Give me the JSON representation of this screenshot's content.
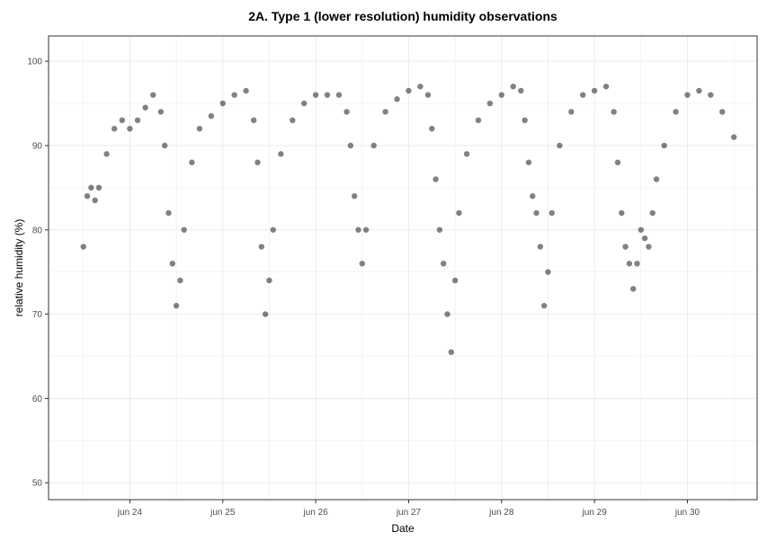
{
  "chart_data": {
    "type": "scatter",
    "title": "2A. Type 1 (lower resolution) humidity observations",
    "xlabel": "Date",
    "ylabel": "relative humidity (%)",
    "x_ticks": [
      "jun 24",
      "jun 25",
      "jun 26",
      "jun 27",
      "jun 28",
      "jun 29",
      "jun 30"
    ],
    "y_ticks": [
      50,
      60,
      70,
      80,
      90,
      100
    ],
    "xlim": [
      "2023-06-23T03:00",
      "2023-06-30T18:00"
    ],
    "ylim": [
      48,
      103
    ],
    "grid": true,
    "legend": "none",
    "colors": {
      "points": "#1a1a1a",
      "grid": "#ebebeb",
      "frame": "#333333"
    },
    "series": [
      {
        "points": [
          [
            "2023-06-23T12:00",
            78
          ],
          [
            "2023-06-23T13:00",
            84
          ],
          [
            "2023-06-23T14:00",
            85
          ],
          [
            "2023-06-23T15:00",
            83.5
          ],
          [
            "2023-06-23T16:00",
            85
          ],
          [
            "2023-06-23T18:00",
            89
          ],
          [
            "2023-06-23T20:00",
            92
          ],
          [
            "2023-06-23T22:00",
            93
          ],
          [
            "2023-06-24T00:00",
            92
          ],
          [
            "2023-06-24T02:00",
            93
          ],
          [
            "2023-06-24T04:00",
            94.5
          ],
          [
            "2023-06-24T06:00",
            96
          ],
          [
            "2023-06-24T08:00",
            94
          ],
          [
            "2023-06-24T09:00",
            90
          ],
          [
            "2023-06-24T10:00",
            82
          ],
          [
            "2023-06-24T11:00",
            76
          ],
          [
            "2023-06-24T12:00",
            71
          ],
          [
            "2023-06-24T13:00",
            74
          ],
          [
            "2023-06-24T14:00",
            80
          ],
          [
            "2023-06-24T16:00",
            88
          ],
          [
            "2023-06-24T18:00",
            92
          ],
          [
            "2023-06-24T21:00",
            93.5
          ],
          [
            "2023-06-25T00:00",
            95
          ],
          [
            "2023-06-25T03:00",
            96
          ],
          [
            "2023-06-25T06:00",
            96.5
          ],
          [
            "2023-06-25T08:00",
            93
          ],
          [
            "2023-06-25T09:00",
            88
          ],
          [
            "2023-06-25T10:00",
            78
          ],
          [
            "2023-06-25T11:00",
            70
          ],
          [
            "2023-06-25T12:00",
            74
          ],
          [
            "2023-06-25T13:00",
            80
          ],
          [
            "2023-06-25T15:00",
            89
          ],
          [
            "2023-06-25T18:00",
            93
          ],
          [
            "2023-06-25T21:00",
            95
          ],
          [
            "2023-06-26T00:00",
            96
          ],
          [
            "2023-06-26T03:00",
            96
          ],
          [
            "2023-06-26T06:00",
            96
          ],
          [
            "2023-06-26T08:00",
            94
          ],
          [
            "2023-06-26T09:00",
            90
          ],
          [
            "2023-06-26T10:00",
            84
          ],
          [
            "2023-06-26T11:00",
            80
          ],
          [
            "2023-06-26T12:00",
            76
          ],
          [
            "2023-06-26T13:00",
            80
          ],
          [
            "2023-06-26T15:00",
            90
          ],
          [
            "2023-06-26T18:00",
            94
          ],
          [
            "2023-06-26T21:00",
            95.5
          ],
          [
            "2023-06-27T00:00",
            96.5
          ],
          [
            "2023-06-27T03:00",
            97
          ],
          [
            "2023-06-27T05:00",
            96
          ],
          [
            "2023-06-27T06:00",
            92
          ],
          [
            "2023-06-27T07:00",
            86
          ],
          [
            "2023-06-27T08:00",
            80
          ],
          [
            "2023-06-27T09:00",
            76
          ],
          [
            "2023-06-27T10:00",
            70
          ],
          [
            "2023-06-27T11:00",
            65.5
          ],
          [
            "2023-06-27T12:00",
            74
          ],
          [
            "2023-06-27T13:00",
            82
          ],
          [
            "2023-06-27T15:00",
            89
          ],
          [
            "2023-06-27T18:00",
            93
          ],
          [
            "2023-06-27T21:00",
            95
          ],
          [
            "2023-06-28T00:00",
            96
          ],
          [
            "2023-06-28T03:00",
            97
          ],
          [
            "2023-06-28T05:00",
            96.5
          ],
          [
            "2023-06-28T06:00",
            93
          ],
          [
            "2023-06-28T07:00",
            88
          ],
          [
            "2023-06-28T08:00",
            84
          ],
          [
            "2023-06-28T09:00",
            82
          ],
          [
            "2023-06-28T10:00",
            78
          ],
          [
            "2023-06-28T11:00",
            71
          ],
          [
            "2023-06-28T12:00",
            75
          ],
          [
            "2023-06-28T13:00",
            82
          ],
          [
            "2023-06-28T15:00",
            90
          ],
          [
            "2023-06-28T18:00",
            94
          ],
          [
            "2023-06-28T21:00",
            96
          ],
          [
            "2023-06-29T00:00",
            96.5
          ],
          [
            "2023-06-29T03:00",
            97
          ],
          [
            "2023-06-29T05:00",
            94
          ],
          [
            "2023-06-29T06:00",
            88
          ],
          [
            "2023-06-29T07:00",
            82
          ],
          [
            "2023-06-29T08:00",
            78
          ],
          [
            "2023-06-29T09:00",
            76
          ],
          [
            "2023-06-29T10:00",
            73
          ],
          [
            "2023-06-29T11:00",
            76
          ],
          [
            "2023-06-29T12:00",
            80
          ],
          [
            "2023-06-29T13:00",
            79
          ],
          [
            "2023-06-29T14:00",
            78
          ],
          [
            "2023-06-29T15:00",
            82
          ],
          [
            "2023-06-29T16:00",
            86
          ],
          [
            "2023-06-29T18:00",
            90
          ],
          [
            "2023-06-29T21:00",
            94
          ],
          [
            "2023-06-30T00:00",
            96
          ],
          [
            "2023-06-30T03:00",
            96.5
          ],
          [
            "2023-06-30T06:00",
            96
          ],
          [
            "2023-06-30T09:00",
            94
          ],
          [
            "2023-06-30T12:00",
            91
          ]
        ]
      }
    ]
  }
}
